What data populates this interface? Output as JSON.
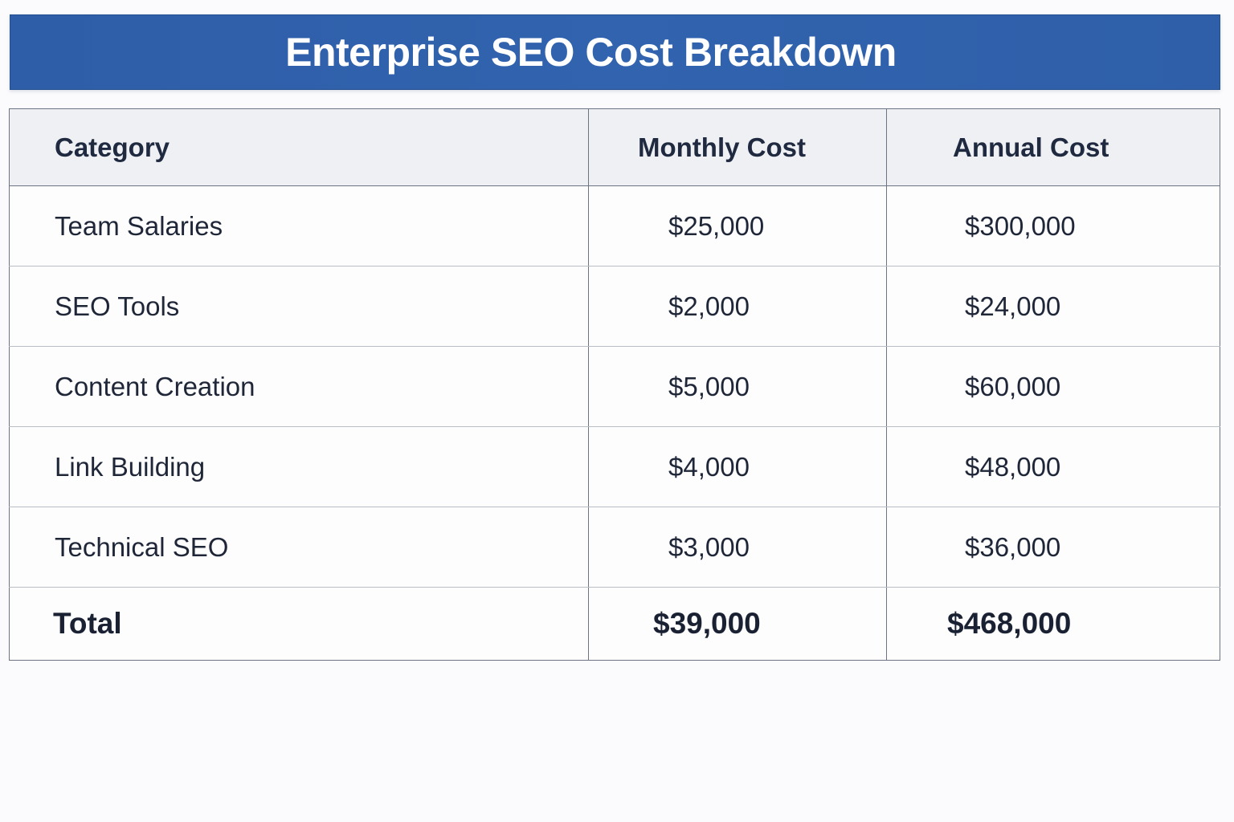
{
  "title": "Enterprise SEO Cost Breakdown",
  "colors": {
    "title_bar": "#3163ae",
    "title_text": "#ffffff",
    "header_bg": "#eff0f3",
    "text": "#1e2638",
    "border": "#6c7382"
  },
  "table": {
    "headers": [
      "Category",
      "Monthly Cost",
      "Annual Cost"
    ],
    "rows": [
      {
        "category": "Team Salaries",
        "monthly": "$25,000",
        "annual": "$300,000"
      },
      {
        "category": "SEO Tools",
        "monthly": "$2,000",
        "annual": "$24,000"
      },
      {
        "category": "Content Creation",
        "monthly": "$5,000",
        "annual": "$60,000"
      },
      {
        "category": "Link Building",
        "monthly": "$4,000",
        "annual": "$48,000"
      },
      {
        "category": "Technical SEO",
        "monthly": "$3,000",
        "annual": "$36,000"
      }
    ],
    "total": {
      "category": "Total",
      "monthly": "$39,000",
      "annual": "$468,000"
    }
  }
}
